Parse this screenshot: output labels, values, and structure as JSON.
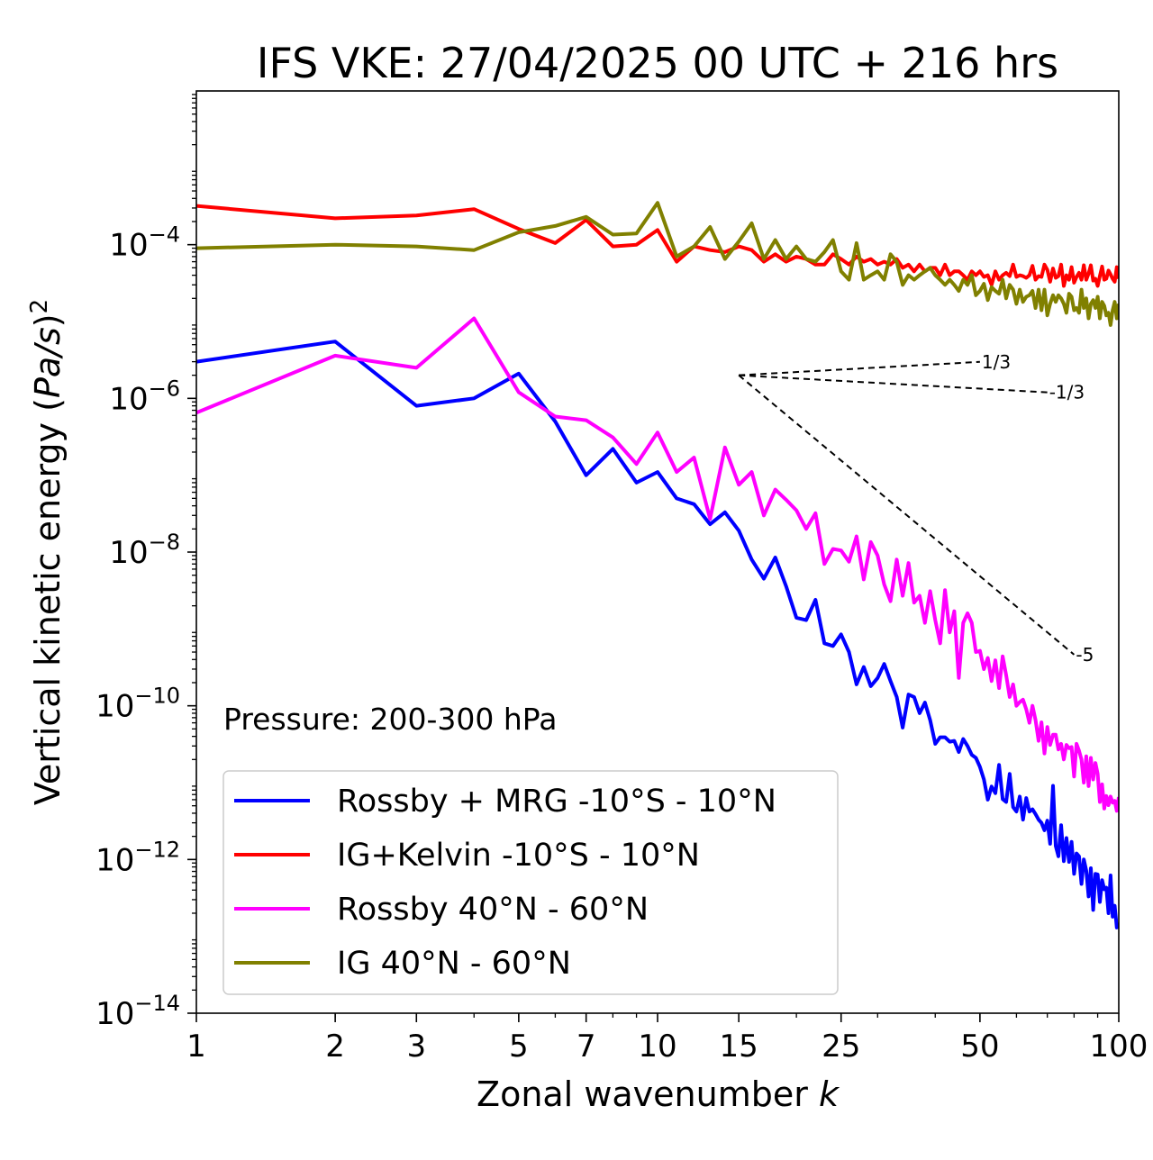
{
  "chart_data": {
    "type": "line",
    "title": "IFS VKE: 27/04/2025 00 UTC + 216 hrs",
    "xlabel": "Zonal wavenumber k",
    "ylabel": "Vertical kinetic energy (Pa/s)^2",
    "x_scale": "log",
    "y_scale": "log",
    "xlim": [
      1,
      100
    ],
    "ylim": [
      1e-14,
      0.01
    ],
    "xticks": [
      1,
      2,
      3,
      5,
      7,
      10,
      15,
      25,
      50,
      100
    ],
    "xtick_labels": [
      "1",
      "2",
      "3",
      "5",
      "7",
      "10",
      "15",
      "25",
      "50",
      "100"
    ],
    "ytick_bases": [
      "10",
      "10",
      "10",
      "10",
      "10",
      "10"
    ],
    "ytick_exponents": [
      "−4",
      "−6",
      "−8",
      "−10",
      "−12",
      "−14"
    ],
    "yticks": [
      0.0001,
      1e-06,
      1e-08,
      1e-10,
      1e-12,
      1e-14
    ],
    "annotation": "Pressure: 200-300 hPa",
    "legend_position": "lower-left",
    "reference_slopes": [
      {
        "label": "1/3",
        "slope": 0.3333,
        "x_start": 15,
        "x_end": 50,
        "y_start": 2e-06
      },
      {
        "label": "-1/3",
        "slope": -0.3333,
        "x_start": 15,
        "x_end": 70,
        "y_start": 2e-06
      },
      {
        "label": "-5",
        "slope": -5,
        "x_start": 15,
        "x_end": 80,
        "y_start": 2e-06
      }
    ],
    "series": [
      {
        "name": "Rossby + MRG -10°S - 10°N",
        "color": "#0000ff",
        "x": [
          1,
          2,
          3,
          4,
          5,
          6,
          7,
          8,
          9,
          10,
          11,
          12,
          13,
          14,
          15,
          16,
          17,
          18,
          19,
          20,
          21,
          22,
          23,
          24,
          25,
          26,
          27,
          28,
          29,
          30,
          31,
          32,
          33,
          34,
          35,
          36,
          37,
          38,
          39,
          40,
          41,
          42,
          43,
          44,
          45,
          46,
          47,
          48,
          49,
          50,
          51,
          52,
          53,
          54,
          55,
          56,
          57,
          58,
          59,
          60,
          61,
          62,
          63,
          64,
          65,
          66,
          67,
          68,
          69,
          70,
          71,
          72,
          73,
          74,
          75,
          76,
          77,
          78,
          79,
          80,
          81,
          82,
          83,
          84,
          85,
          86,
          87,
          88,
          89,
          90,
          91,
          92,
          93,
          94,
          95,
          96,
          97,
          98,
          99,
          100
        ],
        "y": [
          3e-06,
          5.5e-06,
          8e-07,
          1e-06,
          2.1e-06,
          5e-07,
          1e-07,
          2.2e-07,
          8e-08,
          1.1e-07,
          5e-08,
          4.2e-08,
          2.3e-08,
          3.3e-08,
          1.9e-08,
          8e-09,
          4.5e-09,
          8.5e-09,
          3.6e-09,
          1.4e-09,
          1.3e-09,
          2.4e-09,
          6.5e-10,
          6e-10,
          8.5e-10,
          5e-10,
          1.9e-10,
          3.2e-10,
          1.8e-10,
          2.3e-10,
          3.5e-10,
          2.1e-10,
          1.3e-10,
          5.2e-11,
          1.4e-10,
          1.3e-10,
          8e-11,
          1.1e-10,
          6.5e-11,
          3.2e-11,
          3.9e-11,
          3.9e-11,
          3.4e-11,
          3.5e-11,
          2.5e-11,
          3.7e-11,
          3e-11,
          2.3e-11,
          2.1e-11,
          1.6e-11,
          1.1e-11,
          6e-12,
          8.9e-12,
          7.3e-12,
          1.7e-11,
          6.1e-12,
          5.6e-12,
          1.3e-11,
          4.8e-12,
          4.2e-12,
          6.6e-12,
          3.3e-12,
          6.3e-12,
          4.2e-12,
          4.5e-12,
          3.9e-12,
          3.3e-12,
          3e-12,
          2.4e-12,
          3.2e-12,
          1.6e-12,
          9.1e-12,
          1.5e-12,
          1.1e-12,
          2.8e-12,
          9.5e-13,
          1.9e-12,
          9.3e-13,
          1.7e-12,
          6.5e-13,
          1.2e-12,
          1.1e-12,
          4.8e-13,
          1e-12,
          7.2e-13,
          3.3e-13,
          7.7e-13,
          2.2e-13,
          6.5e-13,
          6.4e-13,
          2.8e-13,
          5.4e-13,
          4.1e-13,
          4.3e-13,
          2e-13,
          6.2e-13,
          1.8e-13,
          2.5e-13,
          1.3e-13,
          1.5e-13
        ]
      },
      {
        "name": "IG+Kelvin -10°S - 10°N",
        "color": "#ff0000",
        "x": [
          1,
          2,
          3,
          4,
          5,
          6,
          7,
          8,
          9,
          10,
          11,
          12,
          13,
          14,
          15,
          16,
          17,
          18,
          19,
          20,
          21,
          22,
          23,
          24,
          25,
          26,
          27,
          28,
          29,
          30,
          31,
          32,
          33,
          34,
          35,
          36,
          37,
          38,
          39,
          40,
          41,
          42,
          43,
          44,
          45,
          46,
          47,
          48,
          49,
          50,
          51,
          52,
          53,
          54,
          55,
          56,
          57,
          58,
          59,
          60,
          61,
          62,
          63,
          64,
          65,
          66,
          67,
          68,
          69,
          70,
          71,
          72,
          73,
          74,
          75,
          76,
          77,
          78,
          79,
          80,
          81,
          82,
          83,
          84,
          85,
          86,
          87,
          88,
          89,
          90,
          91,
          92,
          93,
          94,
          95,
          96,
          97,
          98,
          99,
          100
        ],
        "y": [
          0.00032,
          0.00022,
          0.00024,
          0.00029,
          0.00016,
          0.000105,
          0.00021,
          9.5e-05,
          0.0001,
          0.000155,
          6e-05,
          9.5e-05,
          8.5e-05,
          8e-05,
          9.5e-05,
          8.5e-05,
          6e-05,
          7.5e-05,
          6e-05,
          7e-05,
          6.5e-05,
          5.5e-05,
          5.5e-05,
          7.5e-05,
          6.5e-05,
          5.5e-05,
          7e-05,
          6e-05,
          6.5e-05,
          5.5e-05,
          6e-05,
          5.5e-05,
          6.5e-05,
          5e-05,
          5.5e-05,
          4.5e-05,
          5.5e-05,
          4.5e-05,
          5e-05,
          5e-05,
          4e-05,
          5.5e-05,
          4e-05,
          4.5e-05,
          4.5e-05,
          4e-05,
          3.5e-05,
          4.5e-05,
          4e-05,
          4.5e-05,
          3.8e-05,
          4e-05,
          3e-05,
          4.5e-05,
          3.5e-05,
          4e-05,
          4.3e-05,
          3.9e-05,
          5.5e-05,
          3.8e-05,
          4e-05,
          3.9e-05,
          3.7e-05,
          4e-05,
          5.3e-05,
          3.5e-05,
          3.9e-05,
          3.8e-05,
          5.5e-05,
          4.7e-05,
          3.3e-05,
          4.9e-05,
          3.7e-05,
          3.9e-05,
          5.5e-05,
          2.9e-05,
          4e-05,
          3.5e-05,
          5.1e-05,
          3.2e-05,
          3.8e-05,
          4.3e-05,
          3.5e-05,
          5.4e-05,
          3.5e-05,
          4.2e-05,
          5.4e-05,
          3.4e-05,
          3.6e-05,
          2.9e-05,
          3.9e-05,
          5.2e-05,
          3.5e-05,
          3.6e-05,
          4.6e-05,
          4.1e-05,
          3.6e-05,
          3.3e-05,
          5.1e-05,
          3.6e-05
        ]
      },
      {
        "name": "Rossby 40°N - 60°N",
        "color": "#ff00ff",
        "x": [
          1,
          2,
          3,
          4,
          5,
          6,
          7,
          8,
          9,
          10,
          11,
          12,
          13,
          14,
          15,
          16,
          17,
          18,
          19,
          20,
          21,
          22,
          23,
          24,
          25,
          26,
          27,
          28,
          29,
          30,
          31,
          32,
          33,
          34,
          35,
          36,
          37,
          38,
          39,
          40,
          41,
          42,
          43,
          44,
          45,
          46,
          47,
          48,
          49,
          50,
          51,
          52,
          53,
          54,
          55,
          56,
          57,
          58,
          59,
          60,
          61,
          62,
          63,
          64,
          65,
          66,
          67,
          68,
          69,
          70,
          71,
          72,
          73,
          74,
          75,
          76,
          77,
          78,
          79,
          80,
          81,
          82,
          83,
          84,
          85,
          86,
          87,
          88,
          89,
          90,
          91,
          92,
          93,
          94,
          95,
          96,
          97,
          98,
          99,
          100
        ],
        "y": [
          6.5e-07,
          3.6e-06,
          2.5e-06,
          1.1e-05,
          1.2e-06,
          5.8e-07,
          5.2e-07,
          3.1e-07,
          1.4e-07,
          3.6e-07,
          1.1e-07,
          1.7e-07,
          2.7e-08,
          2.3e-07,
          7.5e-08,
          1.1e-07,
          3e-08,
          6.5e-08,
          4.8e-08,
          3.5e-08,
          2e-08,
          3.2e-08,
          7e-09,
          1.1e-08,
          1.05e-08,
          7.5e-09,
          1.6e-08,
          4.4e-09,
          1.35e-08,
          9e-09,
          3.8e-09,
          2.3e-09,
          8e-09,
          2.7e-09,
          7.2e-09,
          2.2e-09,
          2.7e-09,
          1.2e-09,
          3.1e-09,
          1.3e-09,
          6.5e-10,
          3.2e-09,
          9e-10,
          1.7e-09,
          2.3e-10,
          1.2e-09,
          1.6e-09,
          1.2e-09,
          5e-10,
          5.2e-10,
          3e-10,
          4.2e-10,
          2.1e-10,
          3.9e-10,
          1.7e-10,
          4.4e-10,
          2.5e-10,
          1.3e-10,
          1.9e-10,
          1e-10,
          1.12e-10,
          1.2e-10,
          9e-11,
          6e-11,
          1e-10,
          6.5e-11,
          3.5e-11,
          6.1e-11,
          2.4e-11,
          5.3e-11,
          3.1e-11,
          4.2e-11,
          4.2e-11,
          2.7e-11,
          3.2e-11,
          2e-11,
          3.1e-11,
          2.8e-11,
          2.9e-11,
          1.2e-11,
          3.2e-11,
          2.6e-11,
          2e-11,
          1e-11,
          2.2e-11,
          9e-12,
          2.1e-11,
          1.1e-11,
          1.8e-11,
          1.3e-11,
          5.6e-12,
          9.5e-12,
          4.6e-12,
          6.7e-12,
          5.1e-12,
          6.6e-12,
          5.5e-12,
          5.8e-12,
          4.3e-12,
          6.5e-12
        ]
      },
      {
        "name": "IG 40°N - 60°N",
        "color": "#808000",
        "x": [
          1,
          2,
          3,
          4,
          5,
          6,
          7,
          8,
          9,
          10,
          11,
          12,
          13,
          14,
          15,
          16,
          17,
          18,
          19,
          20,
          21,
          22,
          23,
          24,
          25,
          26,
          27,
          28,
          29,
          30,
          31,
          32,
          33,
          34,
          35,
          36,
          37,
          38,
          39,
          40,
          41,
          42,
          43,
          44,
          45,
          46,
          47,
          48,
          49,
          50,
          51,
          52,
          53,
          54,
          55,
          56,
          57,
          58,
          59,
          60,
          61,
          62,
          63,
          64,
          65,
          66,
          67,
          68,
          69,
          70,
          71,
          72,
          73,
          74,
          75,
          76,
          77,
          78,
          79,
          80,
          81,
          82,
          83,
          84,
          85,
          86,
          87,
          88,
          89,
          90,
          91,
          92,
          93,
          94,
          95,
          96,
          97,
          98,
          99,
          100
        ],
        "y": [
          9e-05,
          0.0001,
          9.5e-05,
          8.5e-05,
          0.000145,
          0.000175,
          0.00023,
          0.000135,
          0.00014,
          0.00035,
          7e-05,
          9.5e-05,
          0.00017,
          6.5e-05,
          0.00011,
          0.00019,
          6.5e-05,
          0.000115,
          6.5e-05,
          9.5e-05,
          6.5e-05,
          6e-05,
          8e-05,
          0.000115,
          4.5e-05,
          3.5e-05,
          0.000105,
          3.5e-05,
          4e-05,
          4.5e-05,
          3.5e-05,
          7.5e-05,
          6e-05,
          3e-05,
          4e-05,
          3.5e-05,
          4e-05,
          4.5e-05,
          5e-05,
          4e-05,
          3.5e-05,
          3e-05,
          3.5e-05,
          3e-05,
          2.5e-05,
          3.5e-05,
          3e-05,
          4e-05,
          2.2e-05,
          2.5e-05,
          3.1e-05,
          1.9e-05,
          2.8e-05,
          2.5e-05,
          2.3e-05,
          3.5e-05,
          2e-05,
          3e-05,
          2.6e-05,
          1.7e-05,
          2.6e-05,
          1.8e-05,
          2.1e-05,
          2.2e-05,
          2.5e-05,
          1.5e-05,
          2.6e-05,
          1.4e-05,
          2.6e-05,
          1.2e-05,
          1.7e-05,
          2.2e-05,
          1.8e-05,
          2.2e-05,
          2e-05,
          1.7e-05,
          1.3e-05,
          2.3e-05,
          2.1e-05,
          1.4e-05,
          1.5e-05,
          1.3e-05,
          2.6e-05,
          1.5e-05,
          2e-05,
          1.1e-05,
          1.7e-05,
          1.9e-05,
          1.5e-05,
          2.1e-05,
          1.1e-05,
          1.8e-05,
          1.6e-05,
          1.2e-05,
          1.3e-05,
          9e-06,
          1.4e-05,
          1.8e-05,
          1.1e-05,
          1.7e-05
        ]
      }
    ]
  }
}
